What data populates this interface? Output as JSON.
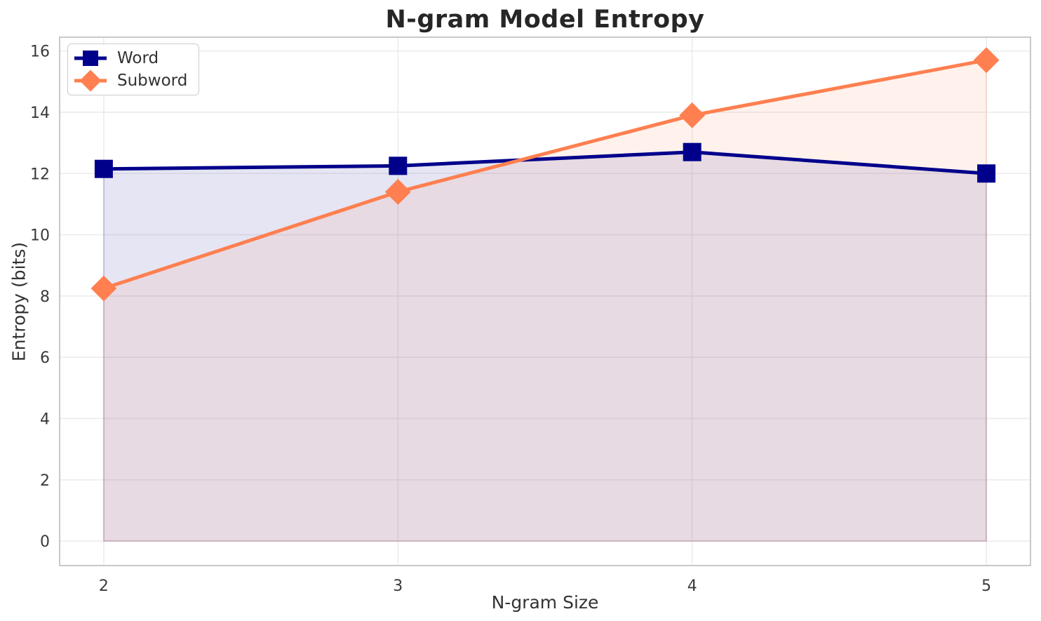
{
  "style": {
    "background": "#FFFFFF",
    "grid_color": "#ECECEC",
    "spine_color": "#C9C9C9",
    "tick_color": "#3A3A3A",
    "title_color": "#262626",
    "label_color": "#333333"
  },
  "chart_data": {
    "type": "line",
    "title": "N-gram Model Entropy",
    "xlabel": "N-gram Size",
    "ylabel": "Entropy (bits)",
    "x": [
      2,
      3,
      4,
      5
    ],
    "series": [
      {
        "name": "Word",
        "values": [
          12.15,
          12.25,
          12.7,
          12.0
        ],
        "color": "#00008B",
        "marker": "square",
        "area_fill": true
      },
      {
        "name": "Subword",
        "values": [
          8.25,
          11.4,
          13.9,
          15.7
        ],
        "color": "#FF7F50",
        "marker": "diamond",
        "area_fill": true
      }
    ],
    "fill_baseline": 0,
    "fill_opacity": 0.1,
    "xlim": [
      1.85,
      5.15
    ],
    "ylim": [
      -0.8,
      16.45
    ],
    "xticks": [
      2,
      3,
      4,
      5
    ],
    "yticks": [
      0,
      2,
      4,
      6,
      8,
      10,
      12,
      14,
      16
    ],
    "grid": true,
    "legend_position": "upper-left"
  }
}
